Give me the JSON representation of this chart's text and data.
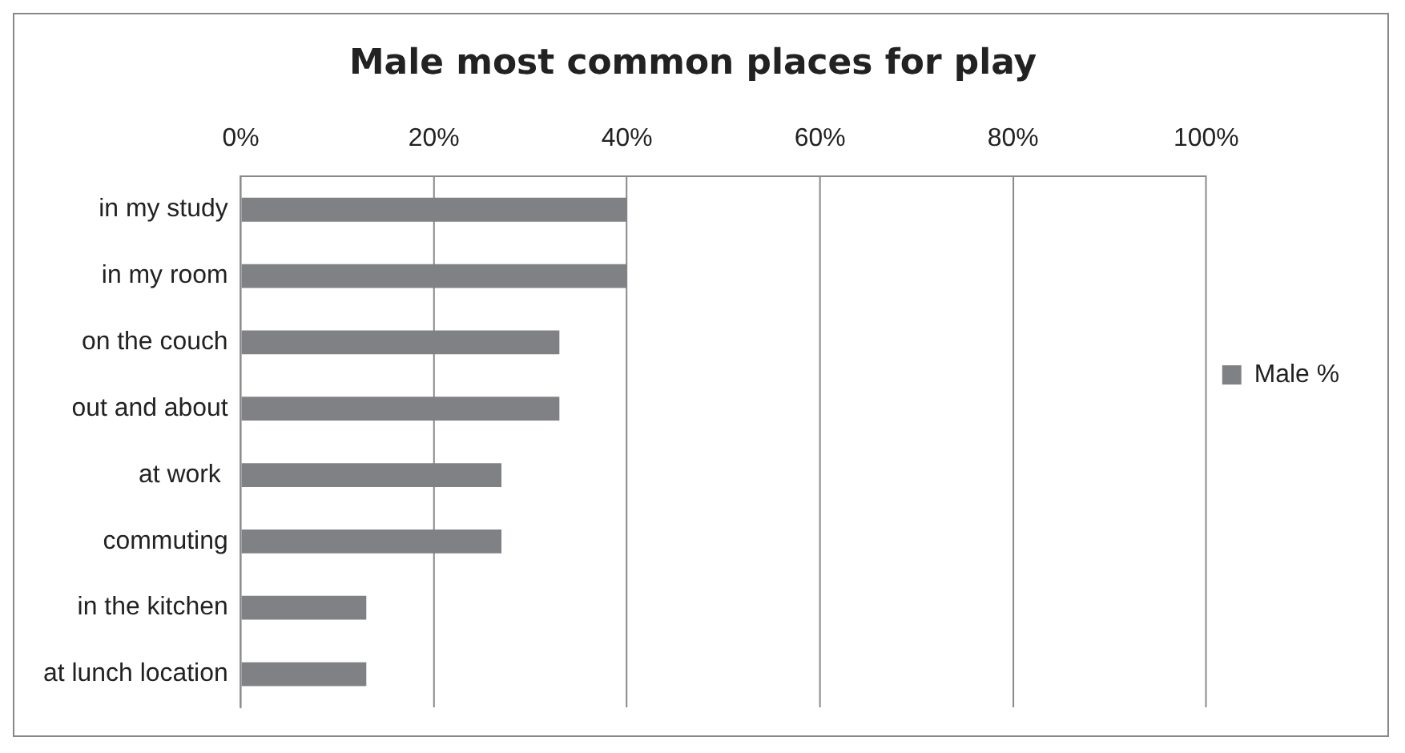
{
  "chart_data": {
    "type": "bar",
    "orientation": "horizontal",
    "title": "Male most common places for play",
    "categories": [
      "in my study",
      "in my room",
      "on the couch",
      "out and about",
      "at work ",
      "commuting",
      "in the kitchen",
      "at lunch location"
    ],
    "series": [
      {
        "name": "Male %",
        "color": "#808184",
        "values": [
          40,
          40,
          33,
          33,
          27,
          27,
          13,
          13
        ]
      }
    ],
    "xlim": [
      0,
      100
    ],
    "xticks": [
      {
        "value": 0,
        "label": "0%"
      },
      {
        "value": 20,
        "label": "20%"
      },
      {
        "value": 40,
        "label": "40%"
      },
      {
        "value": 60,
        "label": "60%"
      },
      {
        "value": 80,
        "label": "80%"
      },
      {
        "value": 100,
        "label": "100%"
      }
    ],
    "grid": "x",
    "legend": "right"
  }
}
